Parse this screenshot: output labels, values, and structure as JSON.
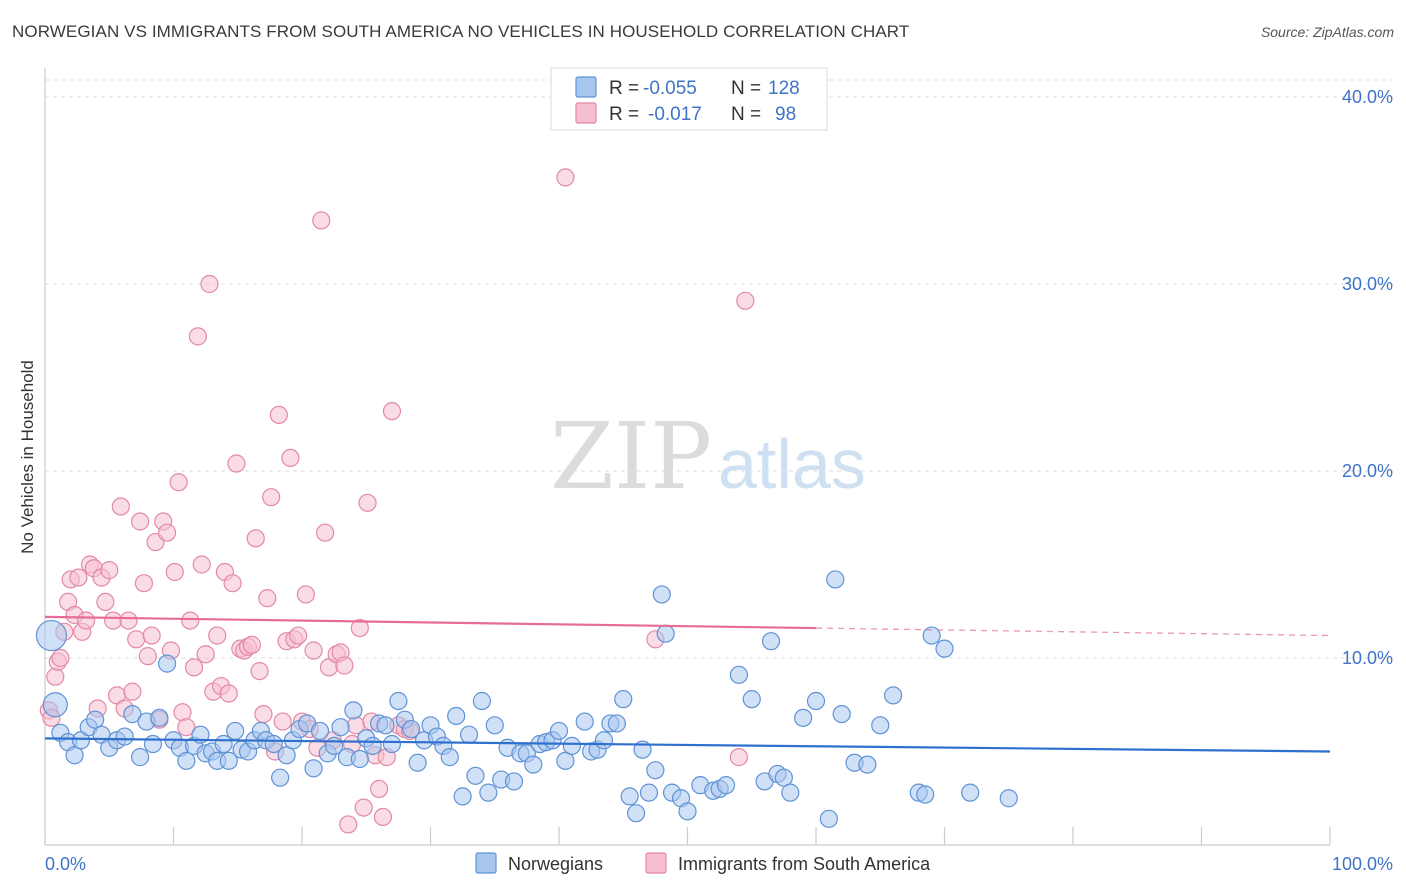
{
  "title": "NORWEGIAN VS IMMIGRANTS FROM SOUTH AMERICA NO VEHICLES IN HOUSEHOLD CORRELATION CHART",
  "source": "Source: ZipAtlas.com",
  "watermark": {
    "part1": "ZIP",
    "part2": "atlas"
  },
  "colors": {
    "blue_fill": "#a9c7ee",
    "blue_stroke": "#5f93d6",
    "blue_line": "#2f6fce",
    "pink_fill": "#f5bfd0",
    "pink_stroke": "#e389a8",
    "pink_line": "#e66b97",
    "axis_text": "#3f73c8",
    "grid": "#dddddd"
  },
  "legend": {
    "rows": [
      {
        "r_label": "R =",
        "r_value": "-0.055",
        "n_label": "N =",
        "n_value": "128"
      },
      {
        "r_label": "R =",
        "r_value": "-0.017",
        "n_label": "N =",
        "n_value": "98"
      }
    ]
  },
  "bottom_legend": [
    "Norwegians",
    "Immigrants from South America"
  ],
  "chart_data": {
    "type": "scatter",
    "title": "NORWEGIAN VS IMMIGRANTS FROM SOUTH AMERICA NO VEHICLES IN HOUSEHOLD CORRELATION CHART",
    "xlabel": "",
    "ylabel": "No Vehicles in Household",
    "xlim": [
      0,
      100
    ],
    "ylim": [
      0,
      40
    ],
    "x_tick_labels": [
      "0.0%",
      "100.0%"
    ],
    "y_ticks": [
      10,
      20,
      30,
      40
    ],
    "y_tick_labels": [
      "10.0%",
      "20.0%",
      "30.0%",
      "40.0%"
    ],
    "grid": true,
    "legend_position": "top-center",
    "series": [
      {
        "name": "Norwegians",
        "r": -0.055,
        "n": 128,
        "trend": {
          "x": [
            0,
            100
          ],
          "y": [
            5.7,
            5.0
          ],
          "solid_until": 100
        },
        "points": [
          [
            0.5,
            11.2
          ],
          [
            0.8,
            7.5
          ],
          [
            1.2,
            6.0
          ],
          [
            1.8,
            5.5
          ],
          [
            2.3,
            4.8
          ],
          [
            2.8,
            5.6
          ],
          [
            3.4,
            6.3
          ],
          [
            3.9,
            6.7
          ],
          [
            4.4,
            5.9
          ],
          [
            5.0,
            5.2
          ],
          [
            5.6,
            5.6
          ],
          [
            6.2,
            5.8
          ],
          [
            6.8,
            7.0
          ],
          [
            7.4,
            4.7
          ],
          [
            7.9,
            6.6
          ],
          [
            8.4,
            5.4
          ],
          [
            8.9,
            6.8
          ],
          [
            9.5,
            9.7
          ],
          [
            10.0,
            5.6
          ],
          [
            10.5,
            5.2
          ],
          [
            11.0,
            4.5
          ],
          [
            11.6,
            5.3
          ],
          [
            12.1,
            5.9
          ],
          [
            12.5,
            4.9
          ],
          [
            13.0,
            5.0
          ],
          [
            13.4,
            4.5
          ],
          [
            13.9,
            5.4
          ],
          [
            14.3,
            4.5
          ],
          [
            14.8,
            6.1
          ],
          [
            15.3,
            5.1
          ],
          [
            15.8,
            5.0
          ],
          [
            16.3,
            5.6
          ],
          [
            16.8,
            6.1
          ],
          [
            17.2,
            5.6
          ],
          [
            17.8,
            5.4
          ],
          [
            18.3,
            3.6
          ],
          [
            18.8,
            4.8
          ],
          [
            19.3,
            5.6
          ],
          [
            19.8,
            6.2
          ],
          [
            20.4,
            6.5
          ],
          [
            20.9,
            4.1
          ],
          [
            21.4,
            6.1
          ],
          [
            22.0,
            4.9
          ],
          [
            22.5,
            5.3
          ],
          [
            23.0,
            6.3
          ],
          [
            23.5,
            4.7
          ],
          [
            24.0,
            7.2
          ],
          [
            24.5,
            4.6
          ],
          [
            25.0,
            5.7
          ],
          [
            25.5,
            5.3
          ],
          [
            26.0,
            6.5
          ],
          [
            26.5,
            6.4
          ],
          [
            27.0,
            5.4
          ],
          [
            27.5,
            7.7
          ],
          [
            28.0,
            6.7
          ],
          [
            28.5,
            6.2
          ],
          [
            29.0,
            4.4
          ],
          [
            29.5,
            5.6
          ],
          [
            30.0,
            6.4
          ],
          [
            30.5,
            5.8
          ],
          [
            31.0,
            5.3
          ],
          [
            31.5,
            4.7
          ],
          [
            32.0,
            6.9
          ],
          [
            32.5,
            2.6
          ],
          [
            33.0,
            5.9
          ],
          [
            33.5,
            3.7
          ],
          [
            34.0,
            7.7
          ],
          [
            34.5,
            2.8
          ],
          [
            35.0,
            6.4
          ],
          [
            35.5,
            3.5
          ],
          [
            36.0,
            5.2
          ],
          [
            36.5,
            3.4
          ],
          [
            37.0,
            4.9
          ],
          [
            37.5,
            4.9
          ],
          [
            38.0,
            4.3
          ],
          [
            38.5,
            5.4
          ],
          [
            39.0,
            5.5
          ],
          [
            39.5,
            5.6
          ],
          [
            40.0,
            6.1
          ],
          [
            40.5,
            4.5
          ],
          [
            41.0,
            5.3
          ],
          [
            42.0,
            6.6
          ],
          [
            42.5,
            5.0
          ],
          [
            43.0,
            5.1
          ],
          [
            43.5,
            5.6
          ],
          [
            44.0,
            6.5
          ],
          [
            44.5,
            6.5
          ],
          [
            45.0,
            7.8
          ],
          [
            45.5,
            2.6
          ],
          [
            46.0,
            1.7
          ],
          [
            46.5,
            5.1
          ],
          [
            47.0,
            2.8
          ],
          [
            47.5,
            4.0
          ],
          [
            48.0,
            13.4
          ],
          [
            48.3,
            11.3
          ],
          [
            48.8,
            2.8
          ],
          [
            49.5,
            2.5
          ],
          [
            50.0,
            1.8
          ],
          [
            51.0,
            3.2
          ],
          [
            52.0,
            2.9
          ],
          [
            52.5,
            3.0
          ],
          [
            53.0,
            3.2
          ],
          [
            54.0,
            9.1
          ],
          [
            55.0,
            7.8
          ],
          [
            56.0,
            3.4
          ],
          [
            56.5,
            10.9
          ],
          [
            57.0,
            3.8
          ],
          [
            57.5,
            3.6
          ],
          [
            58.0,
            2.8
          ],
          [
            59.0,
            6.8
          ],
          [
            60.0,
            7.7
          ],
          [
            61.0,
            1.4
          ],
          [
            61.5,
            14.2
          ],
          [
            62.0,
            7.0
          ],
          [
            63.0,
            4.4
          ],
          [
            64.0,
            4.3
          ],
          [
            65.0,
            6.4
          ],
          [
            66.0,
            8.0
          ],
          [
            68.0,
            2.8
          ],
          [
            68.5,
            2.7
          ],
          [
            69.0,
            11.2
          ],
          [
            70.0,
            10.5
          ],
          [
            72.0,
            2.8
          ],
          [
            75.0,
            2.5
          ]
        ]
      },
      {
        "name": "Immigrants from South America",
        "r": -0.017,
        "n": 98,
        "trend": {
          "x": [
            0,
            100
          ],
          "y": [
            12.2,
            11.2
          ],
          "solid_until": 60
        },
        "points": [
          [
            0.3,
            7.2
          ],
          [
            0.5,
            6.8
          ],
          [
            0.8,
            9.0
          ],
          [
            1.0,
            9.8
          ],
          [
            1.2,
            10.0
          ],
          [
            1.5,
            11.4
          ],
          [
            1.8,
            13.0
          ],
          [
            2.0,
            14.2
          ],
          [
            2.3,
            12.3
          ],
          [
            2.6,
            14.3
          ],
          [
            2.9,
            11.4
          ],
          [
            3.2,
            12.0
          ],
          [
            3.5,
            15.0
          ],
          [
            3.8,
            14.8
          ],
          [
            4.1,
            7.3
          ],
          [
            4.4,
            14.3
          ],
          [
            4.7,
            13.0
          ],
          [
            5.0,
            14.7
          ],
          [
            5.3,
            12.0
          ],
          [
            5.6,
            8.0
          ],
          [
            5.9,
            18.1
          ],
          [
            6.2,
            7.3
          ],
          [
            6.5,
            12.0
          ],
          [
            6.8,
            8.2
          ],
          [
            7.1,
            11.0
          ],
          [
            7.4,
            17.3
          ],
          [
            7.7,
            14.0
          ],
          [
            8.0,
            10.1
          ],
          [
            8.3,
            11.2
          ],
          [
            8.6,
            16.2
          ],
          [
            8.9,
            6.7
          ],
          [
            9.2,
            17.3
          ],
          [
            9.5,
            16.7
          ],
          [
            9.8,
            10.4
          ],
          [
            10.1,
            14.6
          ],
          [
            10.4,
            19.4
          ],
          [
            10.7,
            7.1
          ],
          [
            11.0,
            6.3
          ],
          [
            11.3,
            12.0
          ],
          [
            11.6,
            9.5
          ],
          [
            11.9,
            27.2
          ],
          [
            12.2,
            15.0
          ],
          [
            12.5,
            10.2
          ],
          [
            12.8,
            30.0
          ],
          [
            13.1,
            8.2
          ],
          [
            13.4,
            11.2
          ],
          [
            13.7,
            8.5
          ],
          [
            14.0,
            14.6
          ],
          [
            14.3,
            8.1
          ],
          [
            14.6,
            14.0
          ],
          [
            14.9,
            20.4
          ],
          [
            15.2,
            10.5
          ],
          [
            15.5,
            10.4
          ],
          [
            15.8,
            10.6
          ],
          [
            16.1,
            10.7
          ],
          [
            16.4,
            16.4
          ],
          [
            16.7,
            9.3
          ],
          [
            17.0,
            7.0
          ],
          [
            17.3,
            13.2
          ],
          [
            17.6,
            18.6
          ],
          [
            17.9,
            5.0
          ],
          [
            18.2,
            23.0
          ],
          [
            18.5,
            6.6
          ],
          [
            18.8,
            10.9
          ],
          [
            19.1,
            20.7
          ],
          [
            19.4,
            11.0
          ],
          [
            19.7,
            11.2
          ],
          [
            20.0,
            6.6
          ],
          [
            20.3,
            13.4
          ],
          [
            20.6,
            6.2
          ],
          [
            20.9,
            10.4
          ],
          [
            21.2,
            5.2
          ],
          [
            21.5,
            33.4
          ],
          [
            21.8,
            16.7
          ],
          [
            22.1,
            9.5
          ],
          [
            22.4,
            5.6
          ],
          [
            22.7,
            10.2
          ],
          [
            23.0,
            10.3
          ],
          [
            23.3,
            9.6
          ],
          [
            23.6,
            1.1
          ],
          [
            23.9,
            5.4
          ],
          [
            24.2,
            6.4
          ],
          [
            24.5,
            11.6
          ],
          [
            24.8,
            2.0
          ],
          [
            25.1,
            18.3
          ],
          [
            25.4,
            6.6
          ],
          [
            25.7,
            4.8
          ],
          [
            26.0,
            3.0
          ],
          [
            26.3,
            1.5
          ],
          [
            26.6,
            4.7
          ],
          [
            27.0,
            23.2
          ],
          [
            27.5,
            6.4
          ],
          [
            28.0,
            6.2
          ],
          [
            28.4,
            6.1
          ],
          [
            40.5,
            35.7
          ],
          [
            47.5,
            11.0
          ],
          [
            54.0,
            4.7
          ],
          [
            54.5,
            29.1
          ]
        ]
      }
    ]
  }
}
